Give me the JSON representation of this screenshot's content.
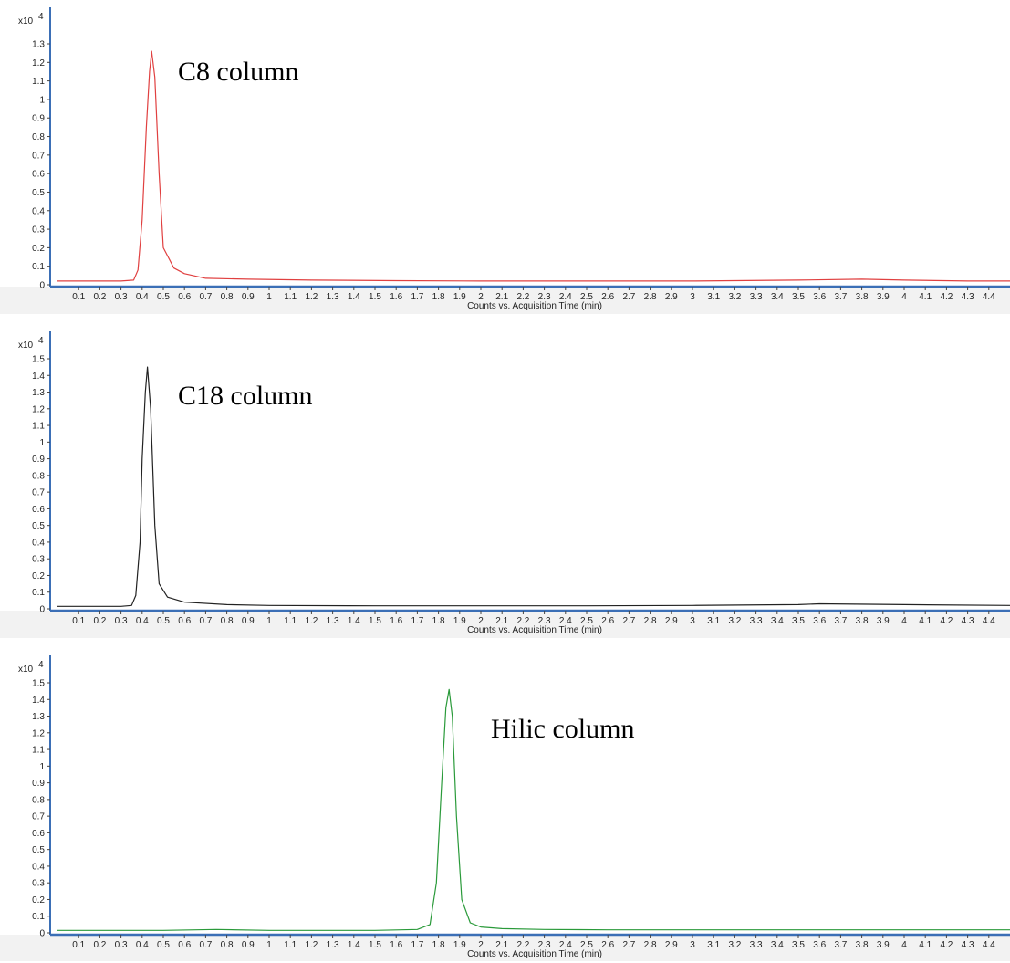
{
  "chart_data": [
    {
      "type": "line",
      "annotation": "C8 column",
      "y_multiplier": "x10",
      "y_multiplier_exp": "4",
      "xlabel": "Counts vs. Acquisition Time (min)",
      "xlim": [
        0,
        4.5
      ],
      "ylim": [
        0,
        1.3
      ],
      "x_ticks": [
        0.1,
        0.2,
        0.3,
        0.4,
        0.5,
        0.6,
        0.7,
        0.8,
        0.9,
        1,
        1.1,
        1.2,
        1.3,
        1.4,
        1.5,
        1.6,
        1.7,
        1.8,
        1.9,
        2,
        2.1,
        2.2,
        2.3,
        2.4,
        2.5,
        2.6,
        2.7,
        2.8,
        2.9,
        3,
        3.1,
        3.2,
        3.3,
        3.4,
        3.5,
        3.6,
        3.7,
        3.8,
        3.9,
        4,
        4.1,
        4.2,
        4.3,
        4.4
      ],
      "y_ticks": [
        0,
        0.1,
        0.2,
        0.3,
        0.4,
        0.5,
        0.6,
        0.7,
        0.8,
        0.9,
        1,
        1.1,
        1.2,
        1.3
      ],
      "color": "#e04040",
      "series": [
        {
          "x": [
            0,
            0.3,
            0.36,
            0.38,
            0.4,
            0.42,
            0.435,
            0.445,
            0.46,
            0.48,
            0.5,
            0.55,
            0.6,
            0.7,
            0.9,
            1.2,
            1.6,
            2.0,
            2.5,
            3.0,
            3.5,
            3.8,
            4.0,
            4.3,
            4.5
          ],
          "y": [
            0.02,
            0.02,
            0.025,
            0.08,
            0.35,
            0.85,
            1.15,
            1.26,
            1.12,
            0.6,
            0.2,
            0.09,
            0.06,
            0.035,
            0.03,
            0.025,
            0.022,
            0.02,
            0.02,
            0.02,
            0.025,
            0.03,
            0.025,
            0.02,
            0.02
          ]
        }
      ]
    },
    {
      "type": "line",
      "annotation": "C18 column",
      "y_multiplier": "x10",
      "y_multiplier_exp": "4",
      "xlabel": "Counts vs. Acquisition Time (min)",
      "xlim": [
        0,
        4.5
      ],
      "ylim": [
        0,
        1.5
      ],
      "x_ticks": [
        0.1,
        0.2,
        0.3,
        0.4,
        0.5,
        0.6,
        0.7,
        0.8,
        0.9,
        1,
        1.1,
        1.2,
        1.3,
        1.4,
        1.5,
        1.6,
        1.7,
        1.8,
        1.9,
        2,
        2.1,
        2.2,
        2.3,
        2.4,
        2.5,
        2.6,
        2.7,
        2.8,
        2.9,
        3,
        3.1,
        3.2,
        3.3,
        3.4,
        3.5,
        3.6,
        3.7,
        3.8,
        3.9,
        4,
        4.1,
        4.2,
        4.3,
        4.4
      ],
      "y_ticks": [
        0,
        0.1,
        0.2,
        0.3,
        0.4,
        0.5,
        0.6,
        0.7,
        0.8,
        0.9,
        1,
        1.1,
        1.2,
        1.3,
        1.4,
        1.5
      ],
      "color": "#222222",
      "series": [
        {
          "x": [
            0,
            0.3,
            0.35,
            0.37,
            0.39,
            0.4,
            0.415,
            0.425,
            0.44,
            0.46,
            0.48,
            0.52,
            0.6,
            0.8,
            1.0,
            1.5,
            2.0,
            2.5,
            3.0,
            3.5,
            3.6,
            4.0,
            4.5
          ],
          "y": [
            0.015,
            0.015,
            0.02,
            0.08,
            0.4,
            0.9,
            1.3,
            1.45,
            1.2,
            0.5,
            0.15,
            0.07,
            0.04,
            0.025,
            0.02,
            0.018,
            0.018,
            0.018,
            0.02,
            0.025,
            0.03,
            0.025,
            0.02
          ]
        }
      ]
    },
    {
      "type": "line",
      "annotation": "Hilic column",
      "y_multiplier": "x10",
      "y_multiplier_exp": "4",
      "xlabel": "Counts vs. Acquisition Time (min)",
      "xlim": [
        0,
        4.5
      ],
      "ylim": [
        0,
        1.5
      ],
      "x_ticks": [
        0.1,
        0.2,
        0.3,
        0.4,
        0.5,
        0.6,
        0.7,
        0.8,
        0.9,
        1,
        1.1,
        1.2,
        1.3,
        1.4,
        1.5,
        1.6,
        1.7,
        1.8,
        1.9,
        2,
        2.1,
        2.2,
        2.3,
        2.4,
        2.5,
        2.6,
        2.7,
        2.8,
        2.9,
        3,
        3.1,
        3.2,
        3.3,
        3.4,
        3.5,
        3.6,
        3.7,
        3.8,
        3.9,
        4,
        4.1,
        4.2,
        4.3,
        4.4
      ],
      "y_ticks": [
        0,
        0.1,
        0.2,
        0.3,
        0.4,
        0.5,
        0.6,
        0.7,
        0.8,
        0.9,
        1,
        1.1,
        1.2,
        1.3,
        1.4,
        1.5
      ],
      "color": "#2a9a3a",
      "series": [
        {
          "x": [
            0,
            0.5,
            0.75,
            1.0,
            1.5,
            1.7,
            1.76,
            1.79,
            1.815,
            1.835,
            1.85,
            1.865,
            1.885,
            1.91,
            1.95,
            2.0,
            2.1,
            2.3,
            2.6,
            3.0,
            3.5,
            4.0,
            4.5
          ],
          "y": [
            0.015,
            0.015,
            0.02,
            0.015,
            0.015,
            0.02,
            0.05,
            0.3,
            0.9,
            1.35,
            1.46,
            1.3,
            0.7,
            0.2,
            0.06,
            0.035,
            0.025,
            0.02,
            0.018,
            0.018,
            0.018,
            0.018,
            0.018
          ]
        }
      ]
    }
  ]
}
